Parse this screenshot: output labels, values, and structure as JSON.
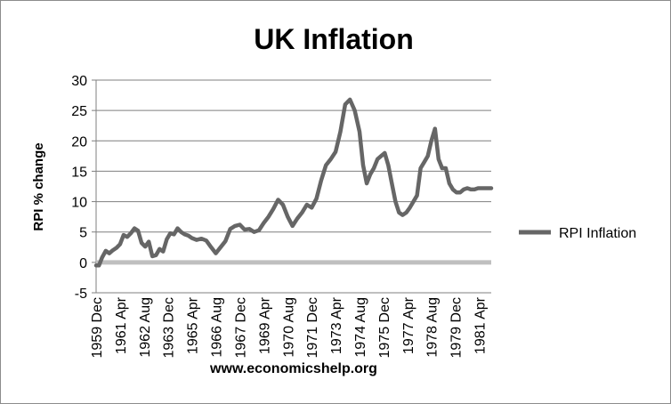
{
  "chart_data": {
    "type": "line",
    "title": "UK Inflation",
    "xlabel": "www.economicshelp.org",
    "ylabel": "RPI % change",
    "ylim": [
      -5,
      30
    ],
    "yticks": [
      "-5",
      "0",
      "5",
      "10",
      "15",
      "20",
      "25",
      "30"
    ],
    "grid": "horizontal",
    "legend_position": "right",
    "line_color": "#666666",
    "categories": [
      "1959 Dec",
      "1961 Apr",
      "1962 Aug",
      "1963 Dec",
      "1965 Apr",
      "1966 Aug",
      "1967 Dec",
      "1969 Apr",
      "1970 Aug",
      "1971 Dec",
      "1973 Apr",
      "1974 Aug",
      "1975 Dec",
      "1977 Apr",
      "1978 Aug",
      "1979 Dec",
      "1981 Apr"
    ],
    "series": [
      {
        "name": "RPI Inflation",
        "x": [
          0,
          0.12,
          0.25,
          0.4,
          0.55,
          0.7,
          0.85,
          1.0,
          1.15,
          1.3,
          1.45,
          1.6,
          1.75,
          1.9,
          2.05,
          2.2,
          2.35,
          2.5,
          2.65,
          2.8,
          2.95,
          3.1,
          3.25,
          3.4,
          3.55,
          3.7,
          3.85,
          4.0,
          4.2,
          4.4,
          4.6,
          4.8,
          5.0,
          5.2,
          5.4,
          5.6,
          5.8,
          6.0,
          6.2,
          6.4,
          6.6,
          6.8,
          7.0,
          7.2,
          7.4,
          7.6,
          7.8,
          8.0,
          8.2,
          8.4,
          8.6,
          8.8,
          9.0,
          9.2,
          9.4,
          9.6,
          9.8,
          10.0,
          10.2,
          10.4,
          10.6,
          10.8,
          11.0,
          11.15,
          11.3,
          11.45,
          11.6,
          11.75,
          11.9,
          12.05,
          12.2,
          12.35,
          12.5,
          12.65,
          12.8,
          12.95,
          13.1,
          13.25,
          13.4,
          13.55,
          13.7,
          13.85,
          14.0,
          14.15,
          14.3,
          14.45,
          14.6,
          14.75,
          14.9,
          15.05,
          15.2,
          15.35,
          15.5,
          15.65,
          15.8,
          15.95,
          16.1,
          16.25,
          16.4,
          16.5
        ],
        "values": [
          -0.5,
          -0.5,
          0.8,
          1.9,
          1.5,
          2.0,
          2.4,
          3.0,
          4.5,
          4.2,
          4.8,
          5.6,
          5.2,
          3.2,
          2.6,
          3.4,
          1.0,
          1.2,
          2.2,
          1.8,
          3.8,
          4.8,
          4.6,
          5.6,
          5.0,
          4.6,
          4.4,
          4.0,
          3.7,
          3.9,
          3.6,
          2.5,
          1.5,
          2.5,
          3.5,
          5.5,
          6.0,
          6.2,
          5.4,
          5.5,
          5.0,
          5.3,
          6.5,
          7.5,
          8.8,
          10.3,
          9.5,
          7.5,
          6.0,
          7.2,
          8.2,
          9.5,
          9.0,
          10.5,
          13.5,
          16.0,
          17.0,
          18.2,
          21.5,
          26.0,
          26.8,
          25.0,
          21.5,
          16.0,
          13.0,
          14.5,
          15.5,
          17.0,
          17.5,
          18.0,
          16.0,
          13.0,
          10.0,
          8.2,
          7.8,
          8.2,
          9.0,
          10.0,
          11.0,
          15.5,
          16.5,
          17.5,
          20.0,
          22.0,
          17.0,
          15.5,
          15.5,
          13.0,
          12.0,
          11.5,
          11.5,
          12.0,
          12.2,
          12.0,
          12.0,
          12.2,
          12.2,
          12.2,
          12.2,
          12.2
        ]
      }
    ]
  }
}
